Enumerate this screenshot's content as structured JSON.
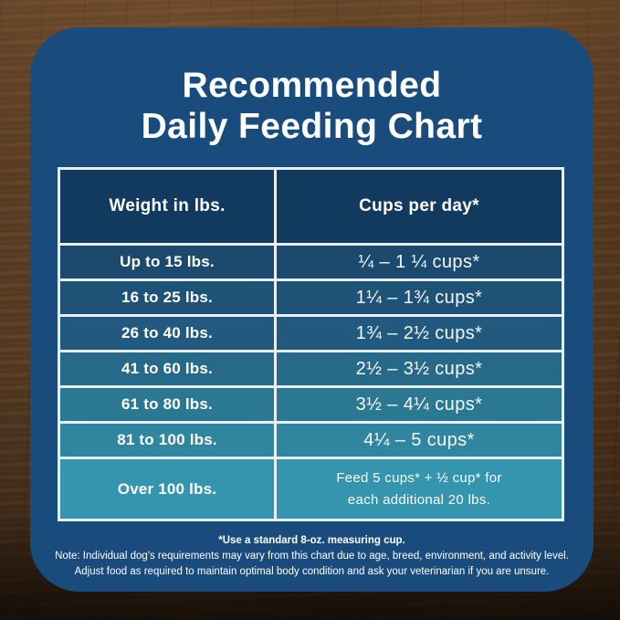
{
  "header": {
    "title_line1": "Recommended",
    "title_line2": "Daily Feeding Chart"
  },
  "table": {
    "col1_header": "Weight in lbs.",
    "col2_header": "Cups per day*",
    "rows": [
      {
        "weight": "Up to 15 lbs.",
        "cups": "¼ – 1 ¼ cups*"
      },
      {
        "weight": "16 to 25 lbs.",
        "cups": "1¼ – 1¾ cups*"
      },
      {
        "weight": "26 to 40 lbs.",
        "cups": "1¾ – 2½ cups*"
      },
      {
        "weight": "41 to 60 lbs.",
        "cups": "2½ – 3½ cups*"
      },
      {
        "weight": "61 to 80 lbs.",
        "cups": "3½ – 4¼ cups*"
      },
      {
        "weight": "81 to 100 lbs.",
        "cups": "4¼ – 5 cups*"
      },
      {
        "weight": "Over 100 lbs.",
        "cups_line1": "Feed 5 cups* + ½ cup* for",
        "cups_line2": "each additional 20 lbs."
      }
    ]
  },
  "footnotes": {
    "measuring_cup": "*Use a standard 8-oz. measuring cup.",
    "note_line1": "Note: Individual dog's requirements may vary from this chart due to age, breed, environment, and activity level.",
    "note_line2": "Adjust food as required to maintain optimal body condition and ask your veterinarian if you are unsure."
  },
  "colors": {
    "panel_bg": "#1a4b7d",
    "header_row_bg": "#123a5f",
    "row_gradient_top": "#1b4a6e",
    "row_gradient_bottom": "#3595ae",
    "table_border": "#e9eef2",
    "text": "#ffffff",
    "wood_brown": "#5d3f26"
  },
  "chart_data": {
    "type": "table",
    "title": "Recommended Daily Feeding Chart",
    "columns": [
      "Weight in lbs.",
      "Cups per day*"
    ],
    "rows": [
      [
        "Up to 15 lbs.",
        "¼ – 1 ¼ cups*"
      ],
      [
        "16 to 25 lbs.",
        "1¼ – 1¾ cups*"
      ],
      [
        "26 to 40 lbs.",
        "1¾ – 2½ cups*"
      ],
      [
        "41 to 60 lbs.",
        "2½ – 3½ cups*"
      ],
      [
        "61 to 80 lbs.",
        "3½ – 4¼ cups*"
      ],
      [
        "81 to 100 lbs.",
        "4¼ – 5 cups*"
      ],
      [
        "Over 100 lbs.",
        "Feed 5 cups* + ½ cup* for each additional 20 lbs."
      ]
    ],
    "notes": [
      "*Use a standard 8-oz. measuring cup.",
      "Note: Individual dog's requirements may vary from this chart due to age, breed, environment, and activity level.",
      "Adjust food as required to maintain optimal body condition and ask your veterinarian if you are unsure."
    ]
  }
}
